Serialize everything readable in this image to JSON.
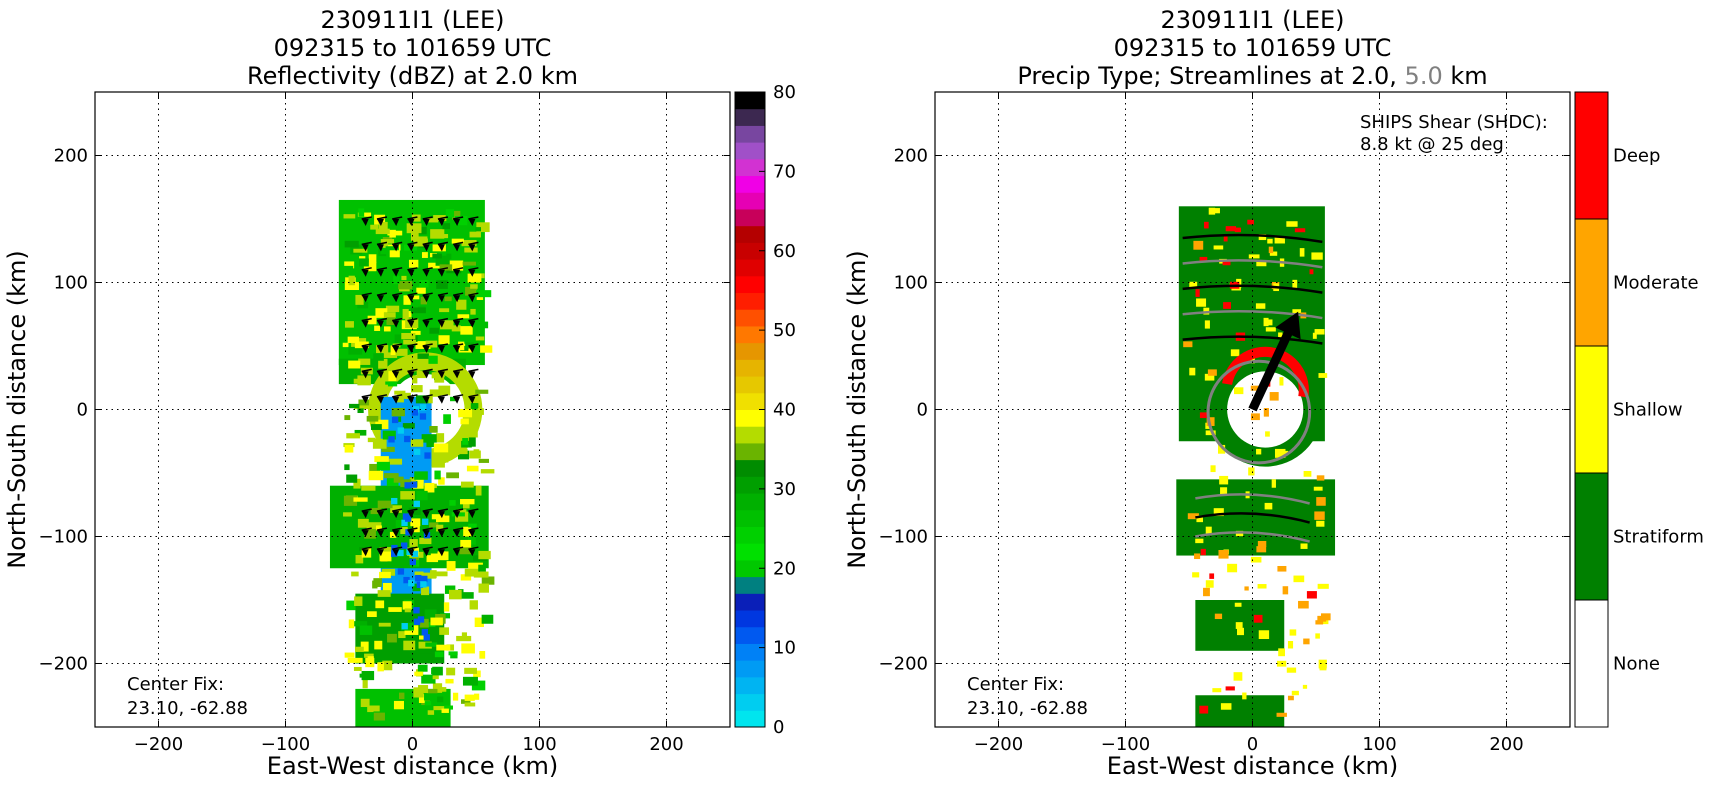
{
  "chart_data": [
    {
      "type": "heatmap",
      "title_lines": [
        "230911I1 (LEE)",
        "092315 to 101659 UTC",
        "Reflectivity (dBZ) at 2.0 km"
      ],
      "xlabel": "East-West distance (km)",
      "ylabel": "North-South distance (km)",
      "xlim": [
        -250,
        250
      ],
      "ylim": [
        -250,
        250
      ],
      "xticks": [
        "−200",
        "−100",
        "0",
        "100",
        "200"
      ],
      "xtick_values": [
        -200,
        -100,
        0,
        100,
        200
      ],
      "yticks": [
        "−200",
        "−100",
        "0",
        "100",
        "200"
      ],
      "ytick_values": [
        -200,
        -100,
        0,
        100,
        200
      ],
      "grid": true,
      "annotation": [
        "Center Fix:",
        "23.10, -62.88"
      ],
      "colorbar": {
        "min": 0,
        "max": 80,
        "step": 2.5,
        "tick_labels": [
          "0",
          "10",
          "20",
          "30",
          "40",
          "50",
          "60",
          "70",
          "80"
        ],
        "tick_values": [
          0,
          10,
          20,
          30,
          40,
          50,
          60,
          70,
          80
        ],
        "colors": [
          "#00e5ee",
          "#00cdf0",
          "#00b4f2",
          "#009bf4",
          "#0081f6",
          "#0059f0",
          "#0037e0",
          "#0a1fb8",
          "#008080",
          "#00c800",
          "#00e000",
          "#00d000",
          "#00c000",
          "#00b000",
          "#009f00",
          "#008c00",
          "#6ab400",
          "#b4dc00",
          "#ffff00",
          "#f0e000",
          "#e6c800",
          "#e6b400",
          "#e69600",
          "#ff7800",
          "#ff5000",
          "#ff1e00",
          "#ff0000",
          "#e00000",
          "#c80000",
          "#b40000",
          "#c8005a",
          "#e600b4",
          "#f000e6",
          "#d232d2",
          "#a050c8",
          "#7846a0",
          "#3c2850",
          "#000000"
        ]
      }
    },
    {
      "type": "heatmap",
      "title_lines": [
        "230911I1 (LEE)",
        "092315 to 101659 UTC"
      ],
      "title_line3_prefix": "Precip Type; Streamlines at 2.0,",
      "title_line3_gray": "5.0",
      "title_line3_suffix": "km",
      "xlabel": "East-West distance (km)",
      "ylabel": "North-South distance (km)",
      "xlim": [
        -250,
        250
      ],
      "ylim": [
        -250,
        250
      ],
      "xticks": [
        "−200",
        "−100",
        "0",
        "100",
        "200"
      ],
      "xtick_values": [
        -200,
        -100,
        0,
        100,
        200
      ],
      "yticks": [
        "−200",
        "−100",
        "0",
        "100",
        "200"
      ],
      "ytick_values": [
        -200,
        -100,
        0,
        100,
        200
      ],
      "grid": true,
      "shear_annotation": [
        "SHIPS Shear (SHDC):",
        "8.8 kt @ 25 deg"
      ],
      "shear": {
        "speed_kt": 8.8,
        "direction_deg": 25
      },
      "annotation": [
        "Center Fix:",
        "23.10, -62.88"
      ],
      "categories": [
        {
          "label": "None",
          "color": "#ffffff"
        },
        {
          "label": "Stratiform",
          "color": "#008000"
        },
        {
          "label": "Shallow",
          "color": "#ffff00"
        },
        {
          "label": "Moderate",
          "color": "#ffa500"
        },
        {
          "label": "Deep",
          "color": "#ff0000"
        }
      ]
    }
  ]
}
